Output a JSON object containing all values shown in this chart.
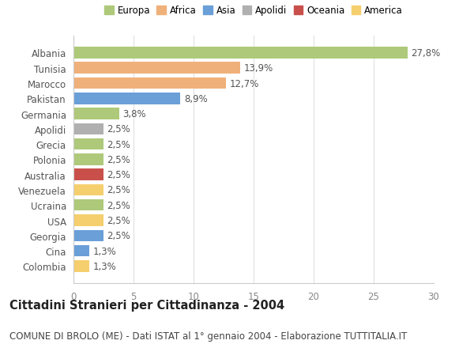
{
  "categories": [
    "Albania",
    "Tunisia",
    "Marocco",
    "Pakistan",
    "Germania",
    "Apolidi",
    "Grecia",
    "Polonia",
    "Australia",
    "Venezuela",
    "Ucraina",
    "USA",
    "Georgia",
    "Cina",
    "Colombia"
  ],
  "values": [
    27.8,
    13.9,
    12.7,
    8.9,
    3.8,
    2.5,
    2.5,
    2.5,
    2.5,
    2.5,
    2.5,
    2.5,
    2.5,
    1.3,
    1.3
  ],
  "bar_colors": [
    "#aec97a",
    "#f0b07a",
    "#f0b07a",
    "#6a9fd8",
    "#aec97a",
    "#b0b0b0",
    "#aec97a",
    "#aec97a",
    "#c9504a",
    "#f5cf6e",
    "#aec97a",
    "#f5cf6e",
    "#6a9fd8",
    "#6a9fd8",
    "#f5cf6e"
  ],
  "labels": [
    "27,8%",
    "13,9%",
    "12,7%",
    "8,9%",
    "3,8%",
    "2,5%",
    "2,5%",
    "2,5%",
    "2,5%",
    "2,5%",
    "2,5%",
    "2,5%",
    "2,5%",
    "1,3%",
    "1,3%"
  ],
  "xlim": [
    0,
    30
  ],
  "xticks": [
    0,
    5,
    10,
    15,
    20,
    25,
    30
  ],
  "legend_entries": [
    {
      "label": "Europa",
      "color": "#aec97a"
    },
    {
      "label": "Africa",
      "color": "#f0b07a"
    },
    {
      "label": "Asia",
      "color": "#6a9fd8"
    },
    {
      "label": "Apolidi",
      "color": "#b0b0b0"
    },
    {
      "label": "Oceania",
      "color": "#c9504a"
    },
    {
      "label": "America",
      "color": "#f5cf6e"
    }
  ],
  "title": "Cittadini Stranieri per Cittadinanza - 2004",
  "subtitle": "COMUNE DI BROLO (ME) - Dati ISTAT al 1° gennaio 2004 - Elaborazione TUTTITALIA.IT",
  "background_color": "#ffffff",
  "grid_color": "#e0e0e0",
  "bar_height": 0.75,
  "label_fontsize": 8.5,
  "ytick_fontsize": 8.5,
  "xtick_fontsize": 8.5,
  "title_fontsize": 10.5,
  "subtitle_fontsize": 8.5
}
